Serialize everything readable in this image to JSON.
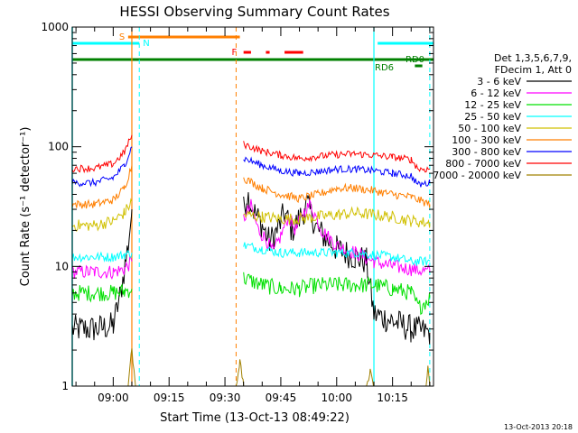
{
  "chart_data": {
    "type": "line",
    "title": "HESSI Observing Summary Count Rates",
    "xlabel": "Start Time (13-Oct-13 08:49:22)",
    "ylabel": "Count Rate (s⁻¹ detector⁻¹)",
    "y_scale": "log",
    "ylim": [
      1,
      1000
    ],
    "xlim": [
      "08:49:22",
      "10:26:00"
    ],
    "x_ticks": [
      "09:00",
      "09:15",
      "09:30",
      "09:45",
      "10:00",
      "10:15"
    ],
    "y_ticks": [
      "1",
      "10",
      "100",
      "1000"
    ],
    "footer_timestamp": "13-Oct-2013 20:18",
    "legend_header": [
      "Det 1,3,5,6,7,9,",
      "FDecim 1, Att 0"
    ],
    "legend": [
      {
        "label": "3 - 6 keV",
        "color": "#000000"
      },
      {
        "label": "6 - 12 keV",
        "color": "#ff00ff"
      },
      {
        "label": "12 - 25 keV",
        "color": "#00e000"
      },
      {
        "label": "25 - 50 keV",
        "color": "#00ffff"
      },
      {
        "label": "50 - 100 keV",
        "color": "#d0c000"
      },
      {
        "label": "100 - 300 keV",
        "color": "#ff7f00"
      },
      {
        "label": "300 - 800 keV",
        "color": "#0000ff"
      },
      {
        "label": "800 - 7000 keV",
        "color": "#ff0000"
      },
      {
        "label": "7000 - 20000 keV",
        "color": "#a08000"
      }
    ],
    "flags": [
      {
        "label": "S",
        "color": "#ff7f00",
        "start": "09:04",
        "end": "09:34"
      },
      {
        "label": "N",
        "color": "#00ffff",
        "start": "08:49",
        "end": "09:07"
      },
      {
        "label": "N",
        "color": "#00ffff",
        "start": "10:11",
        "end": "10:26"
      },
      {
        "label": "F",
        "color": "#ff0000",
        "segments": [
          [
            "09:35",
            "09:37"
          ],
          [
            "09:41",
            "09:42"
          ],
          [
            "09:46",
            "09:51"
          ]
        ]
      },
      {
        "label": "RD0",
        "color": "#008000",
        "start": "08:49",
        "end": "10:26"
      },
      {
        "label": "RD6",
        "color": "#008000",
        "start": "10:21",
        "end": "10:23"
      }
    ],
    "night_lines": [
      "09:07",
      "10:25"
    ],
    "saa_lines": [
      "09:05",
      "09:33"
    ],
    "series": [
      {
        "name": "3 - 6 keV",
        "color": "#000000",
        "segments": [
          {
            "x": [
              "08:49",
              "08:55",
              "09:00",
              "09:02",
              "09:04",
              "09:05"
            ],
            "y": [
              3,
              3,
              3.2,
              6,
              15,
              30
            ]
          },
          {
            "x": [
              "09:35",
              "09:36",
              "09:38",
              "09:40",
              "09:42",
              "09:44",
              "09:46",
              "09:48",
              "09:50",
              "09:52",
              "09:55",
              "10:00",
              "10:05",
              "10:08",
              "10:10",
              "10:15",
              "10:20",
              "10:25"
            ],
            "y": [
              30,
              40,
              28,
              22,
              16,
              20,
              28,
              20,
              25,
              33,
              20,
              14,
              12,
              11,
              4,
              3.5,
              3,
              2.8
            ]
          }
        ]
      },
      {
        "name": "6 - 12 keV",
        "color": "#ff00ff",
        "segments": [
          {
            "x": [
              "08:49",
              "08:55",
              "09:00",
              "09:03",
              "09:05"
            ],
            "y": [
              9,
              9,
              9,
              9.5,
              11
            ]
          },
          {
            "x": [
              "09:35",
              "09:37",
              "09:39",
              "09:41",
              "09:43",
              "09:45",
              "09:47",
              "09:49",
              "09:51",
              "09:53",
              "09:56",
              "10:00",
              "10:05",
              "10:10",
              "10:15",
              "10:20",
              "10:25"
            ],
            "y": [
              25,
              32,
              20,
              17,
              13,
              18,
              26,
              20,
              28,
              33,
              20,
              15,
              13,
              11,
              10,
              9.5,
              9
            ]
          }
        ]
      },
      {
        "name": "12 - 25 keV",
        "color": "#00e000",
        "segments": [
          {
            "x": [
              "08:49",
              "08:55",
              "09:00",
              "09:03",
              "09:05"
            ],
            "y": [
              6,
              6,
              6,
              6.2,
              6.5
            ]
          },
          {
            "x": [
              "09:35",
              "09:40",
              "09:45",
              "09:50",
              "09:55",
              "10:00",
              "10:05",
              "10:10",
              "10:15",
              "10:20",
              "10:22",
              "10:25"
            ],
            "y": [
              8,
              7,
              6.5,
              6.5,
              7,
              7,
              7,
              7,
              6.5,
              6,
              4.5,
              5.5
            ]
          }
        ]
      },
      {
        "name": "25 - 50 keV",
        "color": "#00ffff",
        "segments": [
          {
            "x": [
              "08:49",
              "08:55",
              "09:00",
              "09:03",
              "09:05"
            ],
            "y": [
              12,
              12,
              12,
              12.5,
              13
            ]
          },
          {
            "x": [
              "09:35",
              "09:40",
              "09:45",
              "09:50",
              "09:55",
              "10:00",
              "10:05",
              "10:10",
              "10:15",
              "10:20",
              "10:25"
            ],
            "y": [
              15,
              14,
              13,
              13,
              13,
              13,
              13,
              12.5,
              12,
              11,
              11
            ]
          }
        ]
      },
      {
        "name": "50 - 100 keV",
        "color": "#d0c000",
        "segments": [
          {
            "x": [
              "08:49",
              "08:55",
              "09:00",
              "09:03",
              "09:05"
            ],
            "y": [
              22,
              22,
              24,
              28,
              35
            ]
          },
          {
            "x": [
              "09:35",
              "09:40",
              "09:45",
              "09:50",
              "09:55",
              "10:00",
              "10:05",
              "10:10",
              "10:15",
              "10:20",
              "10:25"
            ],
            "y": [
              27,
              26,
              25,
              25,
              26,
              27,
              28,
              27,
              26,
              24,
              23
            ]
          }
        ]
      },
      {
        "name": "100 - 300 keV",
        "color": "#ff7f00",
        "segments": [
          {
            "x": [
              "08:49",
              "08:55",
              "09:00",
              "09:03",
              "09:05"
            ],
            "y": [
              33,
              33,
              36,
              45,
              70
            ]
          },
          {
            "x": [
              "09:35",
              "09:40",
              "09:45",
              "09:50",
              "09:55",
              "10:00",
              "10:05",
              "10:10",
              "10:15",
              "10:20",
              "10:25"
            ],
            "y": [
              55,
              45,
              40,
              37,
              40,
              45,
              45,
              43,
              40,
              38,
              33
            ]
          }
        ]
      },
      {
        "name": "300 - 800 keV",
        "color": "#0000ff",
        "segments": [
          {
            "x": [
              "08:49",
              "08:55",
              "09:00",
              "09:03",
              "09:05"
            ],
            "y": [
              50,
              50,
              55,
              70,
              100
            ]
          },
          {
            "x": [
              "09:35",
              "09:40",
              "09:45",
              "09:50",
              "09:55",
              "10:00",
              "10:05",
              "10:10",
              "10:15",
              "10:20",
              "10:22",
              "10:25"
            ],
            "y": [
              80,
              70,
              63,
              60,
              62,
              65,
              65,
              63,
              60,
              57,
              48,
              50
            ]
          }
        ]
      },
      {
        "name": "800 - 7000 keV",
        "color": "#ff0000",
        "segments": [
          {
            "x": [
              "08:49",
              "08:55",
              "09:00",
              "09:03",
              "09:05"
            ],
            "y": [
              66,
              66,
              72,
              90,
              125
            ]
          },
          {
            "x": [
              "09:35",
              "09:40",
              "09:45",
              "09:50",
              "09:55",
              "10:00",
              "10:05",
              "10:10",
              "10:15",
              "10:20",
              "10:22",
              "10:25"
            ],
            "y": [
              105,
              92,
              85,
              80,
              83,
              86,
              87,
              85,
              82,
              78,
              65,
              65
            ]
          }
        ]
      },
      {
        "name": "7000 - 20000 keV",
        "color": "#a08000",
        "segments": [
          {
            "x": [
              "09:04",
              "09:04.5",
              "09:05",
              "09:06"
            ],
            "y": [
              1,
              1.5,
              2,
              1
            ]
          },
          {
            "x": [
              "09:33",
              "09:34",
              "09:35"
            ],
            "y": [
              1,
              1.6,
              1
            ]
          },
          {
            "x": [
              "10:08",
              "10:09",
              "10:10"
            ],
            "y": [
              1,
              1.3,
              1
            ]
          },
          {
            "x": [
              "10:24",
              "10:24.5",
              "10:25"
            ],
            "y": [
              1,
              1.5,
              1
            ]
          }
        ]
      }
    ]
  }
}
